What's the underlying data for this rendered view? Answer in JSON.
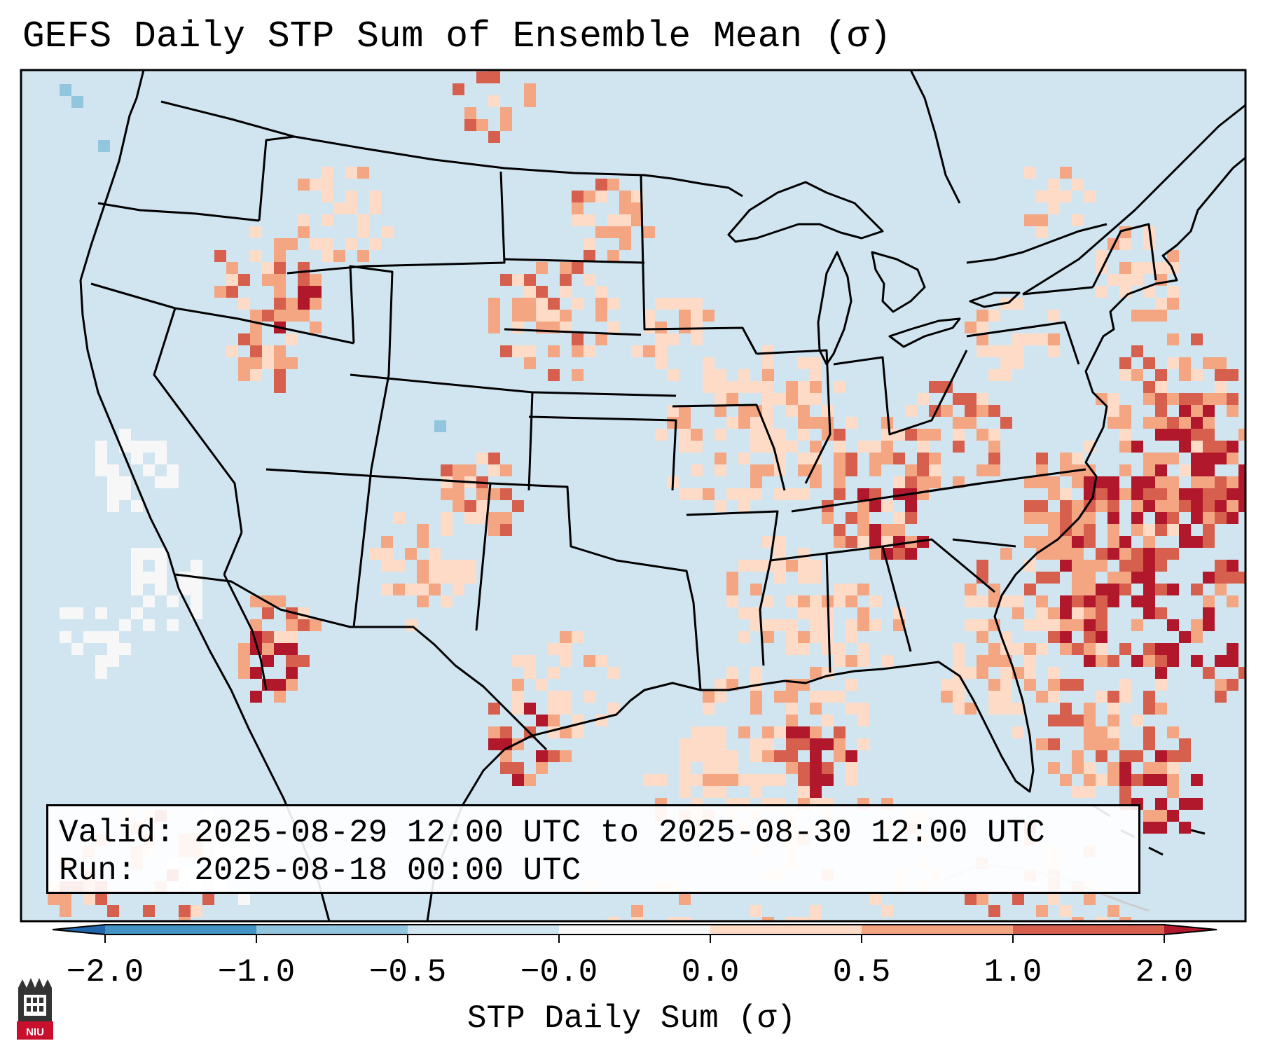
{
  "title": "GEFS Daily STP Sum of Ensemble Mean (σ)",
  "info": {
    "valid": "Valid: 2025-08-29 12:00 UTC to 2025-08-30 12:00 UTC",
    "run": "Run:   2025-08-18 00:00 UTC"
  },
  "colorbar": {
    "label": "STP Daily Sum (σ)",
    "ticks": [
      "−2.0",
      "−1.0",
      "−0.5",
      "−0.0",
      "0.0",
      "0.5",
      "1.0",
      "2.0"
    ],
    "colors": [
      "#2166ac",
      "#4393c3",
      "#92c5de",
      "#d1e5f0",
      "#f7f7f7",
      "#fddbc7",
      "#f4a582",
      "#d6604d",
      "#b2182b"
    ]
  },
  "map": {
    "background_color": "#d1e5f0",
    "outline_color": "#000000"
  },
  "logo": {
    "text": "NIU",
    "icon": "university-tower-icon"
  }
}
